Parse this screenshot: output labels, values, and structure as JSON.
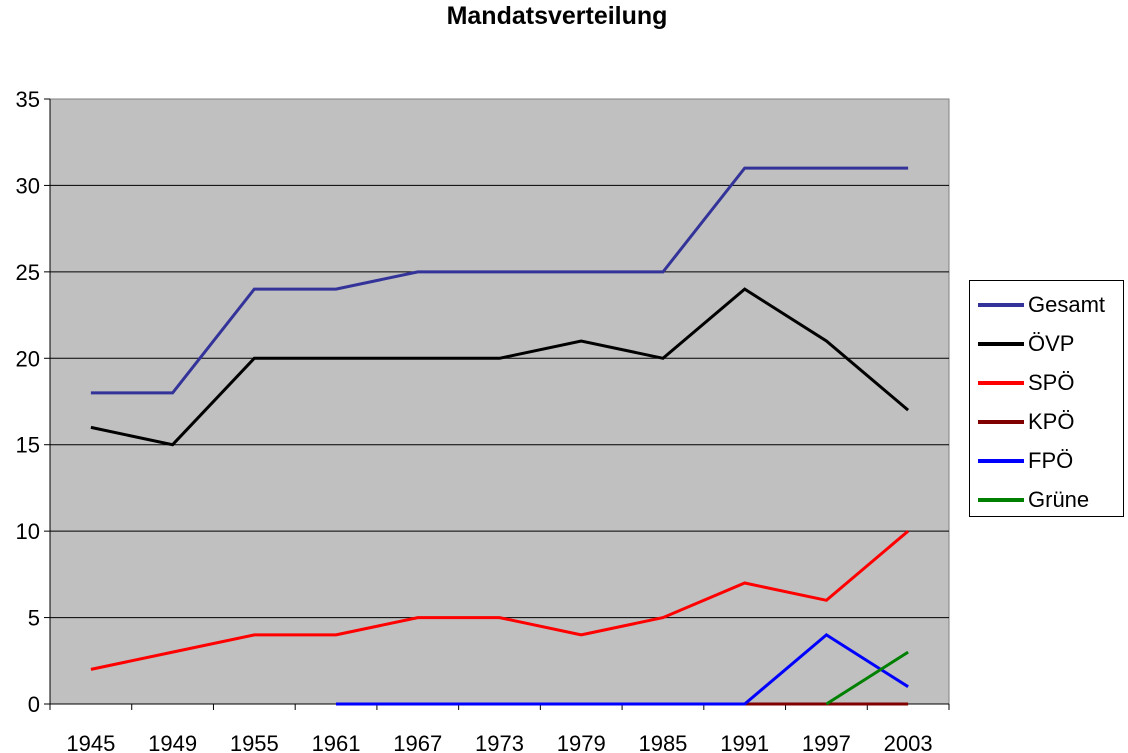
{
  "chart_data": {
    "type": "line",
    "title": "Mandatsverteilung",
    "xlabel": "",
    "ylabel": "",
    "categories": [
      "1945",
      "1949",
      "1955",
      "1961",
      "1967",
      "1973",
      "1979",
      "1985",
      "1991",
      "1997",
      "2003"
    ],
    "ylim": [
      0,
      35
    ],
    "yticks": [
      0,
      5,
      10,
      15,
      20,
      25,
      30,
      35
    ],
    "grid": true,
    "legend_position": "right",
    "plot_background": "#c0c0c0",
    "series": [
      {
        "name": "Gesamt",
        "color": "#333399",
        "values": [
          18,
          18,
          24,
          24,
          25,
          25,
          25,
          25,
          31,
          31,
          31
        ]
      },
      {
        "name": "ÖVP",
        "color": "#000000",
        "values": [
          16,
          15,
          20,
          20,
          20,
          20,
          21,
          20,
          24,
          21,
          17
        ]
      },
      {
        "name": "SPÖ",
        "color": "#ff0000",
        "values": [
          2,
          3,
          4,
          4,
          5,
          5,
          4,
          5,
          7,
          6,
          10
        ]
      },
      {
        "name": "KPÖ",
        "color": "#800000",
        "values": [
          null,
          null,
          null,
          null,
          null,
          null,
          null,
          null,
          0,
          0,
          0
        ]
      },
      {
        "name": "FPÖ",
        "color": "#0000ff",
        "values": [
          null,
          null,
          null,
          0,
          0,
          0,
          0,
          0,
          0,
          4,
          1
        ]
      },
      {
        "name": "Grüne",
        "color": "#008000",
        "values": [
          null,
          null,
          null,
          null,
          null,
          null,
          null,
          null,
          null,
          0,
          3
        ]
      }
    ]
  }
}
